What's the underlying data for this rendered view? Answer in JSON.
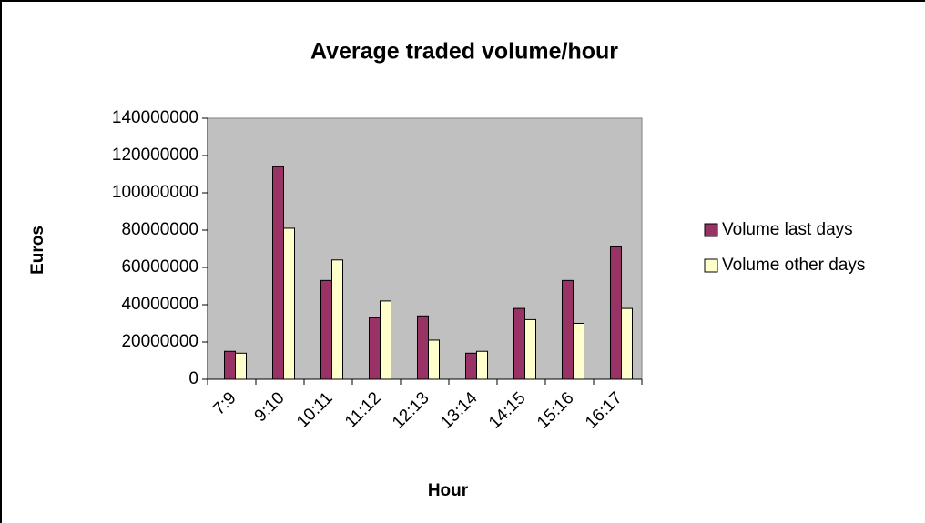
{
  "chart_data": {
    "type": "bar",
    "title": "Average traded volume/hour",
    "xlabel": "Hour",
    "ylabel": "Euros",
    "categories": [
      "7:9",
      "9:10",
      "10:11",
      "11:12",
      "12:13",
      "13:14",
      "14:15",
      "15:16",
      "16:17"
    ],
    "series": [
      {
        "name": "Volume last days",
        "color": "#993366",
        "values": [
          15000000,
          114000000,
          53000000,
          33000000,
          34000000,
          14000000,
          38000000,
          53000000,
          71000000
        ]
      },
      {
        "name": "Volume other days",
        "color": "#ffffcc",
        "values": [
          14000000,
          81000000,
          64000000,
          42000000,
          21000000,
          15000000,
          32000000,
          30000000,
          38000000
        ]
      }
    ],
    "ylim": [
      0,
      140000000
    ],
    "yticks": [
      0,
      20000000,
      40000000,
      60000000,
      80000000,
      100000000,
      120000000,
      140000000
    ],
    "grid": false,
    "legend": "right",
    "plot_background": "#c0c0c0"
  }
}
